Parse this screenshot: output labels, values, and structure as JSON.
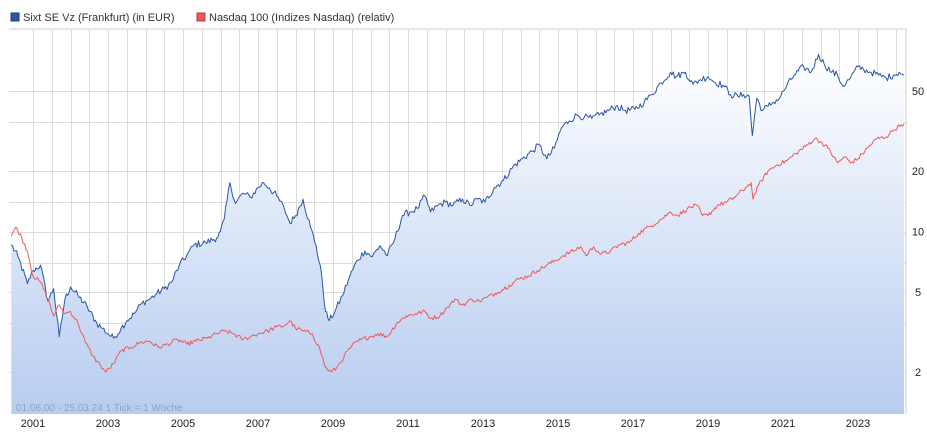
{
  "chart_data": {
    "type": "line",
    "y_scale": "log",
    "ylim": [
      1.5,
      100
    ],
    "xlim": [
      2000.42,
      2024.23
    ],
    "legend": {
      "placement": "top-left",
      "entries": [
        {
          "label": "Sixt SE Vz (Frankfurt) (in EUR)",
          "color": "#2b55a6"
        },
        {
          "label": "Nasdaq 100 (Indizes Nasdaq) (relativ)",
          "color": "#ee5a5a"
        }
      ]
    },
    "x_ticks": [
      {
        "label": "2001",
        "value": 2001
      },
      {
        "label": "2003",
        "value": 2003
      },
      {
        "label": "2005",
        "value": 2005
      },
      {
        "label": "2007",
        "value": 2007
      },
      {
        "label": "2009",
        "value": 2009
      },
      {
        "label": "2011",
        "value": 2011
      },
      {
        "label": "2013",
        "value": 2013
      },
      {
        "label": "2015",
        "value": 2015
      },
      {
        "label": "2017",
        "value": 2017
      },
      {
        "label": "2019",
        "value": 2019
      },
      {
        "label": "2021",
        "value": 2021
      },
      {
        "label": "2023",
        "value": 2023
      }
    ],
    "y_ticks": [
      {
        "label": "50",
        "value": 50
      },
      {
        "label": "20",
        "value": 20
      },
      {
        "label": "10",
        "value": 10
      },
      {
        "label": "5",
        "value": 5
      },
      {
        "label": "2",
        "value": 2
      }
    ],
    "extra_hgrid": [
      35,
      14,
      7,
      3.5
    ],
    "x_grid": [
      2001,
      2001.5,
      2002,
      2002.5,
      2003,
      2003.5,
      2004,
      2004.5,
      2005,
      2005.5,
      2006,
      2006.5,
      2007,
      2007.5,
      2008,
      2008.5,
      2009,
      2009.5,
      2010,
      2010.5,
      2011,
      2011.5,
      2012,
      2012.5,
      2013,
      2013.5,
      2014,
      2014.5,
      2015,
      2015.5,
      2016,
      2016.5,
      2017,
      2017.5,
      2018,
      2018.5,
      2019,
      2019.5,
      2020,
      2020.5,
      2021,
      2021.5,
      2022,
      2022.5,
      2023,
      2023.5,
      2024
    ],
    "series": [
      {
        "name": "Sixt SE Vz (Frankfurt) (in EUR)",
        "color": "#2b55a6",
        "filled": true,
        "points": [
          [
            2000.42,
            8.6
          ],
          [
            2000.6,
            7.5
          ],
          [
            2000.85,
            5.5
          ],
          [
            2001.0,
            6.4
          ],
          [
            2001.2,
            6.8
          ],
          [
            2001.4,
            4.5
          ],
          [
            2001.55,
            5.2
          ],
          [
            2001.7,
            3.0
          ],
          [
            2001.85,
            4.6
          ],
          [
            2002.0,
            5.3
          ],
          [
            2002.2,
            4.8
          ],
          [
            2002.45,
            4.2
          ],
          [
            2002.7,
            3.5
          ],
          [
            2002.85,
            3.3
          ],
          [
            2003.0,
            3.1
          ],
          [
            2003.15,
            2.95
          ],
          [
            2003.35,
            3.3
          ],
          [
            2003.5,
            3.6
          ],
          [
            2003.7,
            3.9
          ],
          [
            2003.9,
            4.4
          ],
          [
            2004.1,
            4.6
          ],
          [
            2004.3,
            4.9
          ],
          [
            2004.5,
            5.2
          ],
          [
            2004.7,
            5.6
          ],
          [
            2004.9,
            6.8
          ],
          [
            2005.1,
            7.6
          ],
          [
            2005.3,
            8.6
          ],
          [
            2005.6,
            8.8
          ],
          [
            2005.9,
            9.3
          ],
          [
            2006.0,
            10.0
          ],
          [
            2006.1,
            11.5
          ],
          [
            2006.25,
            17.5
          ],
          [
            2006.4,
            13.8
          ],
          [
            2006.6,
            15.5
          ],
          [
            2006.8,
            14.8
          ],
          [
            2007.0,
            16.5
          ],
          [
            2007.15,
            17.5
          ],
          [
            2007.3,
            16.5
          ],
          [
            2007.5,
            15.0
          ],
          [
            2007.7,
            13.0
          ],
          [
            2007.85,
            11.0
          ],
          [
            2008.0,
            12.0
          ],
          [
            2008.2,
            14.5
          ],
          [
            2008.4,
            10.5
          ],
          [
            2008.55,
            8.5
          ],
          [
            2008.7,
            6.0
          ],
          [
            2008.8,
            4.0
          ],
          [
            2008.9,
            3.6
          ],
          [
            2009.05,
            4.0
          ],
          [
            2009.25,
            4.8
          ],
          [
            2009.45,
            6.0
          ],
          [
            2009.65,
            7.2
          ],
          [
            2009.85,
            8.0
          ],
          [
            2010.05,
            7.5
          ],
          [
            2010.25,
            8.5
          ],
          [
            2010.45,
            7.6
          ],
          [
            2010.65,
            9.2
          ],
          [
            2010.85,
            12.0
          ],
          [
            2011.05,
            12.5
          ],
          [
            2011.25,
            13.0
          ],
          [
            2011.45,
            15.0
          ],
          [
            2011.6,
            12.5
          ],
          [
            2011.8,
            13.5
          ],
          [
            2012.0,
            14.0
          ],
          [
            2012.2,
            13.5
          ],
          [
            2012.45,
            14.5
          ],
          [
            2012.65,
            13.5
          ],
          [
            2012.85,
            14.5
          ],
          [
            2013.05,
            14.0
          ],
          [
            2013.3,
            16.5
          ],
          [
            2013.55,
            18.0
          ],
          [
            2013.8,
            21.0
          ],
          [
            2014.05,
            23.0
          ],
          [
            2014.3,
            25.0
          ],
          [
            2014.5,
            27.0
          ],
          [
            2014.7,
            23.0
          ],
          [
            2014.9,
            26.0
          ],
          [
            2015.1,
            33.0
          ],
          [
            2015.3,
            35.5
          ],
          [
            2015.5,
            38.0
          ],
          [
            2015.7,
            37.0
          ],
          [
            2015.9,
            36.5
          ],
          [
            2016.1,
            38.0
          ],
          [
            2016.35,
            40.0
          ],
          [
            2016.55,
            42.0
          ],
          [
            2016.8,
            40.0
          ],
          [
            2017.05,
            40.5
          ],
          [
            2017.3,
            44.0
          ],
          [
            2017.5,
            48.0
          ],
          [
            2017.75,
            55.0
          ],
          [
            2018.0,
            62.0
          ],
          [
            2018.15,
            59.0
          ],
          [
            2018.4,
            62.0
          ],
          [
            2018.6,
            54.0
          ],
          [
            2018.8,
            57.0
          ],
          [
            2019.0,
            59.0
          ],
          [
            2019.2,
            55.0
          ],
          [
            2019.4,
            53.5
          ],
          [
            2019.6,
            48.0
          ],
          [
            2019.8,
            47.0
          ],
          [
            2019.95,
            48.0
          ],
          [
            2020.1,
            47.0
          ],
          [
            2020.18,
            30.0
          ],
          [
            2020.3,
            46.0
          ],
          [
            2020.45,
            40.0
          ],
          [
            2020.6,
            42.0
          ],
          [
            2020.75,
            44.0
          ],
          [
            2020.9,
            46.0
          ],
          [
            2021.1,
            53.0
          ],
          [
            2021.3,
            60.0
          ],
          [
            2021.55,
            66.0
          ],
          [
            2021.75,
            62.0
          ],
          [
            2021.95,
            76.0
          ],
          [
            2022.1,
            68.0
          ],
          [
            2022.3,
            62.0
          ],
          [
            2022.45,
            60.0
          ],
          [
            2022.6,
            53.0
          ],
          [
            2022.8,
            58.0
          ],
          [
            2023.0,
            66.0
          ],
          [
            2023.15,
            64.0
          ],
          [
            2023.35,
            62.0
          ],
          [
            2023.55,
            60.0
          ],
          [
            2023.75,
            58.0
          ],
          [
            2023.95,
            60.0
          ],
          [
            2024.1,
            62.0
          ],
          [
            2024.23,
            60.0
          ]
        ]
      },
      {
        "name": "Nasdaq 100 (Indizes Nasdaq) (relativ)",
        "color": "#ee5a5a",
        "filled": false,
        "points": [
          [
            2000.42,
            9.5
          ],
          [
            2000.55,
            10.5
          ],
          [
            2000.7,
            9.3
          ],
          [
            2000.85,
            8.0
          ],
          [
            2001.0,
            6.0
          ],
          [
            2001.2,
            5.6
          ],
          [
            2001.4,
            4.6
          ],
          [
            2001.55,
            3.8
          ],
          [
            2001.7,
            4.3
          ],
          [
            2001.85,
            3.9
          ],
          [
            2002.0,
            4.0
          ],
          [
            2002.2,
            3.5
          ],
          [
            2002.4,
            2.8
          ],
          [
            2002.6,
            2.4
          ],
          [
            2002.8,
            2.15
          ],
          [
            2002.95,
            2.0
          ],
          [
            2003.15,
            2.2
          ],
          [
            2003.35,
            2.55
          ],
          [
            2003.6,
            2.65
          ],
          [
            2003.85,
            2.8
          ],
          [
            2004.1,
            2.85
          ],
          [
            2004.35,
            2.65
          ],
          [
            2004.6,
            2.75
          ],
          [
            2004.85,
            2.9
          ],
          [
            2005.1,
            2.75
          ],
          [
            2005.35,
            2.85
          ],
          [
            2005.65,
            2.95
          ],
          [
            2005.9,
            3.1
          ],
          [
            2006.1,
            3.2
          ],
          [
            2006.35,
            3.1
          ],
          [
            2006.6,
            2.9
          ],
          [
            2006.8,
            3.0
          ],
          [
            2007.0,
            3.1
          ],
          [
            2007.25,
            3.2
          ],
          [
            2007.5,
            3.35
          ],
          [
            2007.7,
            3.4
          ],
          [
            2007.85,
            3.6
          ],
          [
            2008.0,
            3.3
          ],
          [
            2008.2,
            3.2
          ],
          [
            2008.45,
            3.1
          ],
          [
            2008.65,
            2.6
          ],
          [
            2008.8,
            2.1
          ],
          [
            2008.95,
            2.0
          ],
          [
            2009.1,
            2.1
          ],
          [
            2009.3,
            2.4
          ],
          [
            2009.5,
            2.7
          ],
          [
            2009.75,
            2.9
          ],
          [
            2010.0,
            3.0
          ],
          [
            2010.2,
            3.1
          ],
          [
            2010.45,
            3.0
          ],
          [
            2010.7,
            3.5
          ],
          [
            2010.95,
            3.8
          ],
          [
            2011.2,
            3.9
          ],
          [
            2011.45,
            4.0
          ],
          [
            2011.6,
            3.7
          ],
          [
            2011.85,
            3.8
          ],
          [
            2012.05,
            4.2
          ],
          [
            2012.25,
            4.6
          ],
          [
            2012.45,
            4.3
          ],
          [
            2012.7,
            4.6
          ],
          [
            2012.9,
            4.5
          ],
          [
            2013.1,
            4.7
          ],
          [
            2013.4,
            5.0
          ],
          [
            2013.7,
            5.4
          ],
          [
            2013.95,
            5.8
          ],
          [
            2014.2,
            6.0
          ],
          [
            2014.45,
            6.4
          ],
          [
            2014.7,
            6.8
          ],
          [
            2014.95,
            7.2
          ],
          [
            2015.15,
            7.6
          ],
          [
            2015.4,
            8.0
          ],
          [
            2015.6,
            8.4
          ],
          [
            2015.75,
            7.6
          ],
          [
            2015.95,
            8.4
          ],
          [
            2016.15,
            7.7
          ],
          [
            2016.4,
            8.0
          ],
          [
            2016.65,
            8.6
          ],
          [
            2016.9,
            8.8
          ],
          [
            2017.15,
            9.8
          ],
          [
            2017.45,
            10.6
          ],
          [
            2017.75,
            11.5
          ],
          [
            2018.0,
            12.5
          ],
          [
            2018.2,
            12.0
          ],
          [
            2018.45,
            13.0
          ],
          [
            2018.7,
            13.5
          ],
          [
            2018.85,
            12.0
          ],
          [
            2019.0,
            12.0
          ],
          [
            2019.25,
            13.5
          ],
          [
            2019.5,
            14.0
          ],
          [
            2019.75,
            15.0
          ],
          [
            2020.0,
            16.5
          ],
          [
            2020.15,
            17.5
          ],
          [
            2020.2,
            14.5
          ],
          [
            2020.35,
            17.0
          ],
          [
            2020.6,
            20.0
          ],
          [
            2020.85,
            21.5
          ],
          [
            2021.1,
            22.5
          ],
          [
            2021.35,
            24.5
          ],
          [
            2021.6,
            26.5
          ],
          [
            2021.85,
            29.0
          ],
          [
            2022.0,
            28.0
          ],
          [
            2022.2,
            26.0
          ],
          [
            2022.45,
            22.0
          ],
          [
            2022.65,
            23.5
          ],
          [
            2022.8,
            22.0
          ],
          [
            2023.0,
            23.0
          ],
          [
            2023.25,
            26.0
          ],
          [
            2023.5,
            29.0
          ],
          [
            2023.75,
            29.5
          ],
          [
            2023.95,
            32.0
          ],
          [
            2024.15,
            34.0
          ],
          [
            2024.23,
            34.5
          ]
        ]
      }
    ]
  },
  "footnote": "01.06.00 - 25.03.24   1 Tick = 1 Woche"
}
